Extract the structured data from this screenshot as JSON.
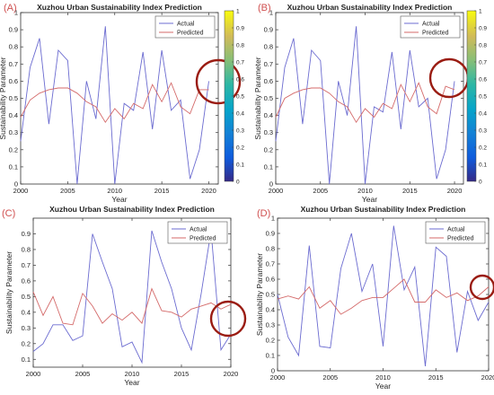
{
  "colors": {
    "actual": "#6b6bd0",
    "predicted": "#d46a6a",
    "axis": "#333333",
    "circle": "#9a1c12",
    "panel_letter": "#d05050"
  },
  "chart_data": [
    {
      "panel": "(A)",
      "type": "line",
      "title": "Xuzhou Urban Sustainability Index Prediction",
      "xlabel": "Year",
      "ylabel": "Sustainability Parameter",
      "xlim": [
        2000,
        2021
      ],
      "ylim": [
        0,
        1
      ],
      "xticks": [
        "2000",
        "2005",
        "2010",
        "2015",
        "2020"
      ],
      "yticks": [
        "0",
        "0.1",
        "0.2",
        "0.3",
        "0.4",
        "0.5",
        "0.6",
        "0.7",
        "0.8",
        "0.9",
        "1"
      ],
      "legend": [
        "Actual",
        "Predicted"
      ],
      "legend_position": "top-right",
      "colorbar": true,
      "colorbar_ticks": [
        "0",
        "0.1",
        "0.2",
        "0.3",
        "0.4",
        "0.5",
        "0.6",
        "0.7",
        "0.8",
        "0.9",
        "1"
      ],
      "x": [
        2000,
        2001,
        2002,
        2003,
        2004,
        2005,
        2006,
        2007,
        2008,
        2009,
        2010,
        2011,
        2012,
        2013,
        2014,
        2015,
        2016,
        2017,
        2018,
        2019,
        2020
      ],
      "series": [
        {
          "name": "Actual",
          "values": [
            0.25,
            0.68,
            0.85,
            0.35,
            0.78,
            0.72,
            0.0,
            0.6,
            0.38,
            0.92,
            0.0,
            0.47,
            0.43,
            0.77,
            0.32,
            0.78,
            0.43,
            0.49,
            0.03,
            0.2,
            0.6
          ]
        },
        {
          "name": "Predicted",
          "values": [
            0.39,
            0.49,
            0.53,
            0.55,
            0.56,
            0.56,
            0.53,
            0.48,
            0.45,
            0.36,
            0.44,
            0.38,
            0.47,
            0.44,
            0.58,
            0.48,
            0.59,
            0.45,
            0.41,
            0.55,
            0.55
          ]
        }
      ]
    },
    {
      "panel": "(B)",
      "type": "line",
      "title": "Xuzhou Urban Sustainability Index Prediction",
      "xlabel": "Year",
      "ylabel": "Sustainability Parameter",
      "xlim": [
        2000,
        2021
      ],
      "ylim": [
        0,
        1
      ],
      "xticks": [
        "2000",
        "2005",
        "2010",
        "2015",
        "2020"
      ],
      "yticks": [
        "0",
        "0.1",
        "0.2",
        "0.3",
        "0.4",
        "0.5",
        "0.6",
        "0.7",
        "0.8",
        "0.9",
        "1"
      ],
      "legend": [
        "Actual",
        "Predicted"
      ],
      "legend_position": "top-right",
      "colorbar": true,
      "colorbar_ticks": [
        "0",
        "0.1",
        "0.2",
        "0.3",
        "0.4",
        "0.5",
        "0.6",
        "0.7",
        "0.8",
        "0.9",
        "1"
      ],
      "x": [
        2000,
        2001,
        2002,
        2003,
        2004,
        2005,
        2006,
        2007,
        2008,
        2009,
        2010,
        2011,
        2012,
        2013,
        2014,
        2015,
        2016,
        2017,
        2018,
        2019,
        2020
      ],
      "series": [
        {
          "name": "Actual",
          "values": [
            0.25,
            0.68,
            0.85,
            0.35,
            0.78,
            0.72,
            0.0,
            0.6,
            0.4,
            0.92,
            0.0,
            0.45,
            0.42,
            0.77,
            0.32,
            0.78,
            0.45,
            0.5,
            0.03,
            0.2,
            0.6
          ]
        },
        {
          "name": "Predicted",
          "values": [
            0.39,
            0.5,
            0.53,
            0.55,
            0.56,
            0.56,
            0.53,
            0.48,
            0.45,
            0.36,
            0.44,
            0.39,
            0.47,
            0.44,
            0.58,
            0.48,
            0.59,
            0.45,
            0.41,
            0.57,
            0.55
          ]
        }
      ]
    },
    {
      "panel": "(C)",
      "type": "line",
      "title": "Xuzhou Urban Sustainability Index Prediction",
      "xlabel": "Year",
      "ylabel": "Sustainability Parameter",
      "xlim": [
        2000,
        2020
      ],
      "ylim": [
        0.05,
        1
      ],
      "xticks": [
        "2000",
        "2005",
        "2010",
        "2015",
        "2020"
      ],
      "yticks": [
        "0.1",
        "0.2",
        "0.3",
        "0.4",
        "0.5",
        "0.6",
        "0.7",
        "0.8",
        "0.9"
      ],
      "legend": [
        "Actual",
        "Predicted"
      ],
      "legend_position": "top-right",
      "colorbar": false,
      "x": [
        2000,
        2001,
        2002,
        2003,
        2004,
        2005,
        2006,
        2007,
        2008,
        2009,
        2010,
        2011,
        2012,
        2013,
        2014,
        2015,
        2016,
        2017,
        2018,
        2019,
        2020
      ],
      "series": [
        {
          "name": "Actual",
          "values": [
            0.15,
            0.2,
            0.32,
            0.32,
            0.22,
            0.25,
            0.9,
            0.72,
            0.55,
            0.18,
            0.21,
            0.08,
            0.92,
            0.72,
            0.55,
            0.3,
            0.16,
            0.52,
            0.92,
            0.16,
            0.26
          ]
        },
        {
          "name": "Predicted",
          "values": [
            0.53,
            0.38,
            0.5,
            0.33,
            0.32,
            0.52,
            0.44,
            0.33,
            0.39,
            0.35,
            0.4,
            0.33,
            0.55,
            0.41,
            0.4,
            0.37,
            0.42,
            0.44,
            0.46,
            0.42,
            0.45
          ]
        }
      ]
    },
    {
      "panel": "(D)",
      "type": "line",
      "title": "Xuzhou Urban Sustainability Index Prediction",
      "xlabel": "Year",
      "ylabel": "Sustainability Parameter",
      "xlim": [
        2000,
        2020
      ],
      "ylim": [
        0,
        1
      ],
      "xticks": [
        "2000",
        "2005",
        "2010",
        "2015",
        "2020"
      ],
      "yticks": [
        "0",
        "0.1",
        "0.2",
        "0.3",
        "0.4",
        "0.5",
        "0.6",
        "0.7",
        "0.8",
        "0.9",
        "1"
      ],
      "legend": [
        "Actual",
        "Predicted"
      ],
      "legend_position": "top-right",
      "colorbar": false,
      "x": [
        2000,
        2001,
        2002,
        2003,
        2004,
        2005,
        2006,
        2007,
        2008,
        2009,
        2010,
        2011,
        2012,
        2013,
        2014,
        2015,
        2016,
        2017,
        2018,
        2019,
        2020
      ],
      "series": [
        {
          "name": "Actual",
          "values": [
            0.5,
            0.22,
            0.1,
            0.82,
            0.16,
            0.15,
            0.67,
            0.9,
            0.52,
            0.7,
            0.16,
            0.95,
            0.53,
            0.68,
            0.03,
            0.81,
            0.75,
            0.12,
            0.52,
            0.33,
            0.45
          ]
        },
        {
          "name": "Predicted",
          "values": [
            0.47,
            0.49,
            0.47,
            0.55,
            0.41,
            0.46,
            0.37,
            0.41,
            0.46,
            0.48,
            0.48,
            0.54,
            0.6,
            0.45,
            0.45,
            0.53,
            0.48,
            0.51,
            0.46,
            0.49,
            0.55
          ]
        }
      ]
    }
  ]
}
